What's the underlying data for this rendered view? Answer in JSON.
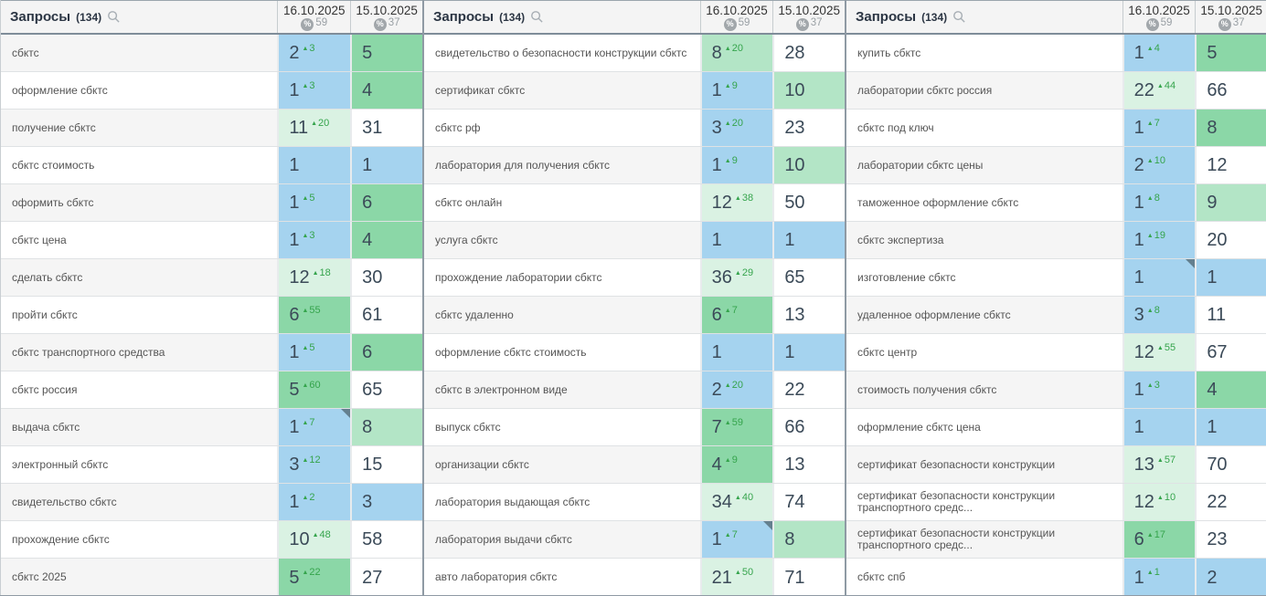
{
  "header": {
    "queries_label": "Запросы",
    "queries_count": "(134)",
    "percent_symbol": "%",
    "delta_arrow": "▲",
    "columns": [
      {
        "date": "16.10.2025",
        "percent": "59"
      },
      {
        "date": "15.10.2025",
        "percent": "37"
      }
    ]
  },
  "colors": {
    "top3_blue": "#a5d3ef",
    "green": "#8bd7a7",
    "light_green": "#b3e5c6",
    "pale_green": "#daf2e3",
    "white": "#ffffff",
    "delta_green": "#35a44c",
    "stripe_gray": "#f5f5f5"
  },
  "tables": [
    {
      "stripe_first": true,
      "rows": [
        {
          "q": "сбктс",
          "v1": "2",
          "d1": "3",
          "c1": "b",
          "m1": false,
          "v2": "5",
          "c2": "g"
        },
        {
          "q": "оформление сбктс",
          "v1": "1",
          "d1": "3",
          "c1": "b",
          "m1": false,
          "v2": "4",
          "c2": "g"
        },
        {
          "q": "получение сбктс",
          "v1": "11",
          "d1": "20",
          "c1": "pg",
          "m1": false,
          "v2": "31",
          "c2": "w"
        },
        {
          "q": "сбктс стоимость",
          "v1": "1",
          "d1": "",
          "c1": "b",
          "m1": false,
          "v2": "1",
          "c2": "b"
        },
        {
          "q": "оформить сбктс",
          "v1": "1",
          "d1": "5",
          "c1": "b",
          "m1": false,
          "v2": "6",
          "c2": "g"
        },
        {
          "q": "сбктс цена",
          "v1": "1",
          "d1": "3",
          "c1": "b",
          "m1": false,
          "v2": "4",
          "c2": "g"
        },
        {
          "q": "сделать сбктс",
          "v1": "12",
          "d1": "18",
          "c1": "pg",
          "m1": false,
          "v2": "30",
          "c2": "w"
        },
        {
          "q": "пройти сбктс",
          "v1": "6",
          "d1": "55",
          "c1": "g",
          "m1": false,
          "v2": "61",
          "c2": "w"
        },
        {
          "q": "сбктс транспортного средства",
          "v1": "1",
          "d1": "5",
          "c1": "b",
          "m1": false,
          "v2": "6",
          "c2": "g"
        },
        {
          "q": "сбктс россия",
          "v1": "5",
          "d1": "60",
          "c1": "g",
          "m1": false,
          "v2": "65",
          "c2": "w"
        },
        {
          "q": "выдача сбктс",
          "v1": "1",
          "d1": "7",
          "c1": "b",
          "m1": true,
          "v2": "8",
          "c2": "lg"
        },
        {
          "q": "электронный сбктс",
          "v1": "3",
          "d1": "12",
          "c1": "b",
          "m1": false,
          "v2": "15",
          "c2": "w"
        },
        {
          "q": "свидетельство сбктс",
          "v1": "1",
          "d1": "2",
          "c1": "b",
          "m1": false,
          "v2": "3",
          "c2": "b"
        },
        {
          "q": "прохождение сбктс",
          "v1": "10",
          "d1": "48",
          "c1": "pg",
          "m1": false,
          "v2": "58",
          "c2": "w"
        },
        {
          "q": "сбктс 2025",
          "v1": "5",
          "d1": "22",
          "c1": "g",
          "m1": false,
          "v2": "27",
          "c2": "w"
        }
      ]
    },
    {
      "stripe_first": false,
      "rows": [
        {
          "q": "свидетельство о безопасности конструкции сбктс",
          "v1": "8",
          "d1": "20",
          "c1": "lg",
          "m1": false,
          "v2": "28",
          "c2": "w"
        },
        {
          "q": "сертификат сбктс",
          "v1": "1",
          "d1": "9",
          "c1": "b",
          "m1": false,
          "v2": "10",
          "c2": "lg"
        },
        {
          "q": "сбктс рф",
          "v1": "3",
          "d1": "20",
          "c1": "b",
          "m1": false,
          "v2": "23",
          "c2": "w"
        },
        {
          "q": "лаборатория для получения сбктс",
          "v1": "1",
          "d1": "9",
          "c1": "b",
          "m1": false,
          "v2": "10",
          "c2": "lg"
        },
        {
          "q": "сбктс онлайн",
          "v1": "12",
          "d1": "38",
          "c1": "pg",
          "m1": false,
          "v2": "50",
          "c2": "w"
        },
        {
          "q": "услуга сбктс",
          "v1": "1",
          "d1": "",
          "c1": "b",
          "m1": false,
          "v2": "1",
          "c2": "b"
        },
        {
          "q": "прохождение лаборатории сбктс",
          "v1": "36",
          "d1": "29",
          "c1": "pg",
          "m1": false,
          "v2": "65",
          "c2": "w"
        },
        {
          "q": "сбктс удаленно",
          "v1": "6",
          "d1": "7",
          "c1": "g",
          "m1": false,
          "v2": "13",
          "c2": "w"
        },
        {
          "q": "оформление сбктс стоимость",
          "v1": "1",
          "d1": "",
          "c1": "b",
          "m1": false,
          "v2": "1",
          "c2": "b"
        },
        {
          "q": "сбктс в электронном виде",
          "v1": "2",
          "d1": "20",
          "c1": "b",
          "m1": false,
          "v2": "22",
          "c2": "w"
        },
        {
          "q": "выпуск сбктс",
          "v1": "7",
          "d1": "59",
          "c1": "g",
          "m1": false,
          "v2": "66",
          "c2": "w"
        },
        {
          "q": "организации сбктс",
          "v1": "4",
          "d1": "9",
          "c1": "g",
          "m1": false,
          "v2": "13",
          "c2": "w"
        },
        {
          "q": "лаборатория выдающая сбктс",
          "v1": "34",
          "d1": "40",
          "c1": "pg",
          "m1": false,
          "v2": "74",
          "c2": "w"
        },
        {
          "q": "лаборатория выдачи сбктс",
          "v1": "1",
          "d1": "7",
          "c1": "b",
          "m1": true,
          "v2": "8",
          "c2": "lg"
        },
        {
          "q": "авто лаборатория сбктс",
          "v1": "21",
          "d1": "50",
          "c1": "pg",
          "m1": false,
          "v2": "71",
          "c2": "w"
        }
      ]
    },
    {
      "stripe_first": false,
      "rows": [
        {
          "q": "купить сбктс",
          "v1": "1",
          "d1": "4",
          "c1": "b",
          "m1": false,
          "v2": "5",
          "c2": "g"
        },
        {
          "q": "лаборатории сбктс россия",
          "v1": "22",
          "d1": "44",
          "c1": "pg",
          "m1": false,
          "v2": "66",
          "c2": "w"
        },
        {
          "q": "сбктс под ключ",
          "v1": "1",
          "d1": "7",
          "c1": "b",
          "m1": false,
          "v2": "8",
          "c2": "g"
        },
        {
          "q": "лаборатории сбктс цены",
          "v1": "2",
          "d1": "10",
          "c1": "b",
          "m1": false,
          "v2": "12",
          "c2": "w"
        },
        {
          "q": "таможенное оформление сбктс",
          "v1": "1",
          "d1": "8",
          "c1": "b",
          "m1": false,
          "v2": "9",
          "c2": "lg"
        },
        {
          "q": "сбктс экспертиза",
          "v1": "1",
          "d1": "19",
          "c1": "b",
          "m1": false,
          "v2": "20",
          "c2": "w"
        },
        {
          "q": "изготовление сбктс",
          "v1": "1",
          "d1": "",
          "c1": "b",
          "m1": true,
          "v2": "1",
          "c2": "b"
        },
        {
          "q": "удаленное оформление сбктс",
          "v1": "3",
          "d1": "8",
          "c1": "b",
          "m1": false,
          "v2": "11",
          "c2": "w"
        },
        {
          "q": "сбктс центр",
          "v1": "12",
          "d1": "55",
          "c1": "pg",
          "m1": false,
          "v2": "67",
          "c2": "w"
        },
        {
          "q": "стоимость получения сбктс",
          "v1": "1",
          "d1": "3",
          "c1": "b",
          "m1": false,
          "v2": "4",
          "c2": "g"
        },
        {
          "q": "оформление сбктс цена",
          "v1": "1",
          "d1": "",
          "c1": "b",
          "m1": false,
          "v2": "1",
          "c2": "b"
        },
        {
          "q": "сертификат безопасности конструкции",
          "v1": "13",
          "d1": "57",
          "c1": "pg",
          "m1": false,
          "v2": "70",
          "c2": "w"
        },
        {
          "q": "сертификат безопасности конструкции транспортного средс...",
          "v1": "12",
          "d1": "10",
          "c1": "pg",
          "m1": false,
          "v2": "22",
          "c2": "w"
        },
        {
          "q": "сертификат безопасности конструкции транспортного средс...",
          "v1": "6",
          "d1": "17",
          "c1": "g",
          "m1": false,
          "v2": "23",
          "c2": "w"
        },
        {
          "q": "сбктс спб",
          "v1": "1",
          "d1": "1",
          "c1": "b",
          "m1": false,
          "v2": "2",
          "c2": "b"
        }
      ]
    }
  ]
}
